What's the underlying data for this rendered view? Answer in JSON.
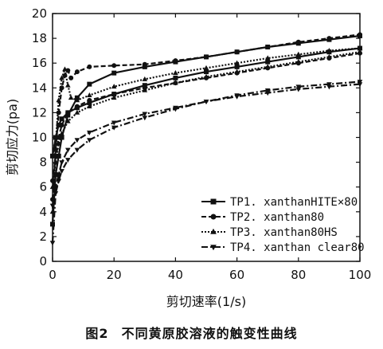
{
  "caption": {
    "figure_no": "图2",
    "title": "不同黄原胶溶液的触变性曲线"
  },
  "chart_data": {
    "type": "line",
    "title": "",
    "xlabel": "剪切速率(1/s)",
    "ylabel": "剪切应力(pa)",
    "xlim": [
      0,
      100
    ],
    "ylim": [
      0,
      20
    ],
    "xticks": [
      0,
      20,
      40,
      60,
      80,
      100
    ],
    "yticks": [
      0,
      2,
      4,
      6,
      8,
      10,
      12,
      14,
      16,
      18,
      20
    ],
    "grid": false,
    "legend_position": "bottom-right",
    "series": [
      {
        "name": "TP1. xanthanHITE×80",
        "marker": "square",
        "up": {
          "x": [
            0,
            1,
            2,
            3,
            5,
            8,
            12,
            20,
            30,
            40,
            50,
            60,
            70,
            80,
            90,
            100
          ],
          "y": [
            3,
            7,
            8.5,
            10,
            11.8,
            13.2,
            14.3,
            15.2,
            15.7,
            16.1,
            16.5,
            16.9,
            17.3,
            17.6,
            17.9,
            18.2
          ]
        },
        "down": {
          "x": [
            100,
            90,
            80,
            70,
            60,
            50,
            40,
            30,
            20,
            12,
            8,
            5,
            3,
            2,
            1,
            0
          ],
          "y": [
            17.2,
            16.9,
            16.5,
            16.1,
            15.7,
            15.3,
            14.8,
            14.2,
            13.5,
            12.8,
            12.4,
            12,
            11.5,
            11,
            10,
            8.5
          ]
        }
      },
      {
        "name": "TP2. xanthan80",
        "marker": "circle",
        "up": {
          "x": [
            0,
            1,
            2,
            3,
            4,
            5,
            6,
            8,
            12,
            20,
            30,
            40,
            50,
            60,
            70,
            80,
            90,
            100
          ],
          "y": [
            5,
            9,
            12,
            14,
            15,
            15.4,
            14.8,
            15.3,
            15.7,
            15.8,
            15.9,
            16.2,
            16.5,
            16.9,
            17.3,
            17.7,
            18,
            18.3
          ]
        },
        "down": {
          "x": [
            100,
            90,
            80,
            70,
            60,
            50,
            40,
            30,
            20,
            12,
            8,
            5,
            3,
            2,
            1,
            0
          ],
          "y": [
            16.8,
            16.4,
            16,
            15.6,
            15.2,
            14.8,
            14.4,
            14,
            13.5,
            13,
            12.5,
            12,
            11,
            10,
            8.5,
            6.5
          ]
        }
      },
      {
        "name": "TP3. xanthan80HS",
        "marker": "triangle-up",
        "up": {
          "x": [
            0,
            1,
            2,
            3,
            4,
            5,
            6,
            8,
            12,
            20,
            30,
            40,
            50,
            60,
            70,
            80,
            90,
            100
          ],
          "y": [
            4,
            9.5,
            13,
            14.8,
            15.5,
            14.2,
            13.2,
            13,
            13.4,
            14.1,
            14.7,
            15.2,
            15.6,
            16,
            16.4,
            16.7,
            17,
            17.2
          ]
        },
        "down": {
          "x": [
            100,
            90,
            80,
            70,
            60,
            50,
            40,
            30,
            20,
            12,
            8,
            5,
            3,
            2,
            1,
            0
          ],
          "y": [
            16.9,
            16.5,
            16.1,
            15.7,
            15.3,
            14.9,
            14.4,
            13.8,
            13.2,
            12.5,
            12,
            11.3,
            10.3,
            9.5,
            8,
            6
          ]
        }
      },
      {
        "name": "TP4. xanthan clear80",
        "marker": "triangle-down",
        "up": {
          "x": [
            0,
            1,
            2,
            3,
            5,
            8,
            12,
            20,
            30,
            40,
            50,
            60,
            70,
            80,
            90,
            100
          ],
          "y": [
            1.5,
            5.5,
            6.5,
            7.3,
            8.2,
            9,
            9.8,
            10.8,
            11.6,
            12.3,
            12.9,
            13.4,
            13.8,
            14.1,
            14.3,
            14.5
          ]
        },
        "down": {
          "x": [
            100,
            90,
            80,
            70,
            60,
            50,
            40,
            30,
            20,
            12,
            8,
            5,
            3,
            2,
            1,
            0
          ],
          "y": [
            14.3,
            14.1,
            13.9,
            13.6,
            13.3,
            12.9,
            12.4,
            11.9,
            11.2,
            10.4,
            9.8,
            9,
            8,
            7,
            6,
            4.5
          ]
        }
      }
    ]
  }
}
